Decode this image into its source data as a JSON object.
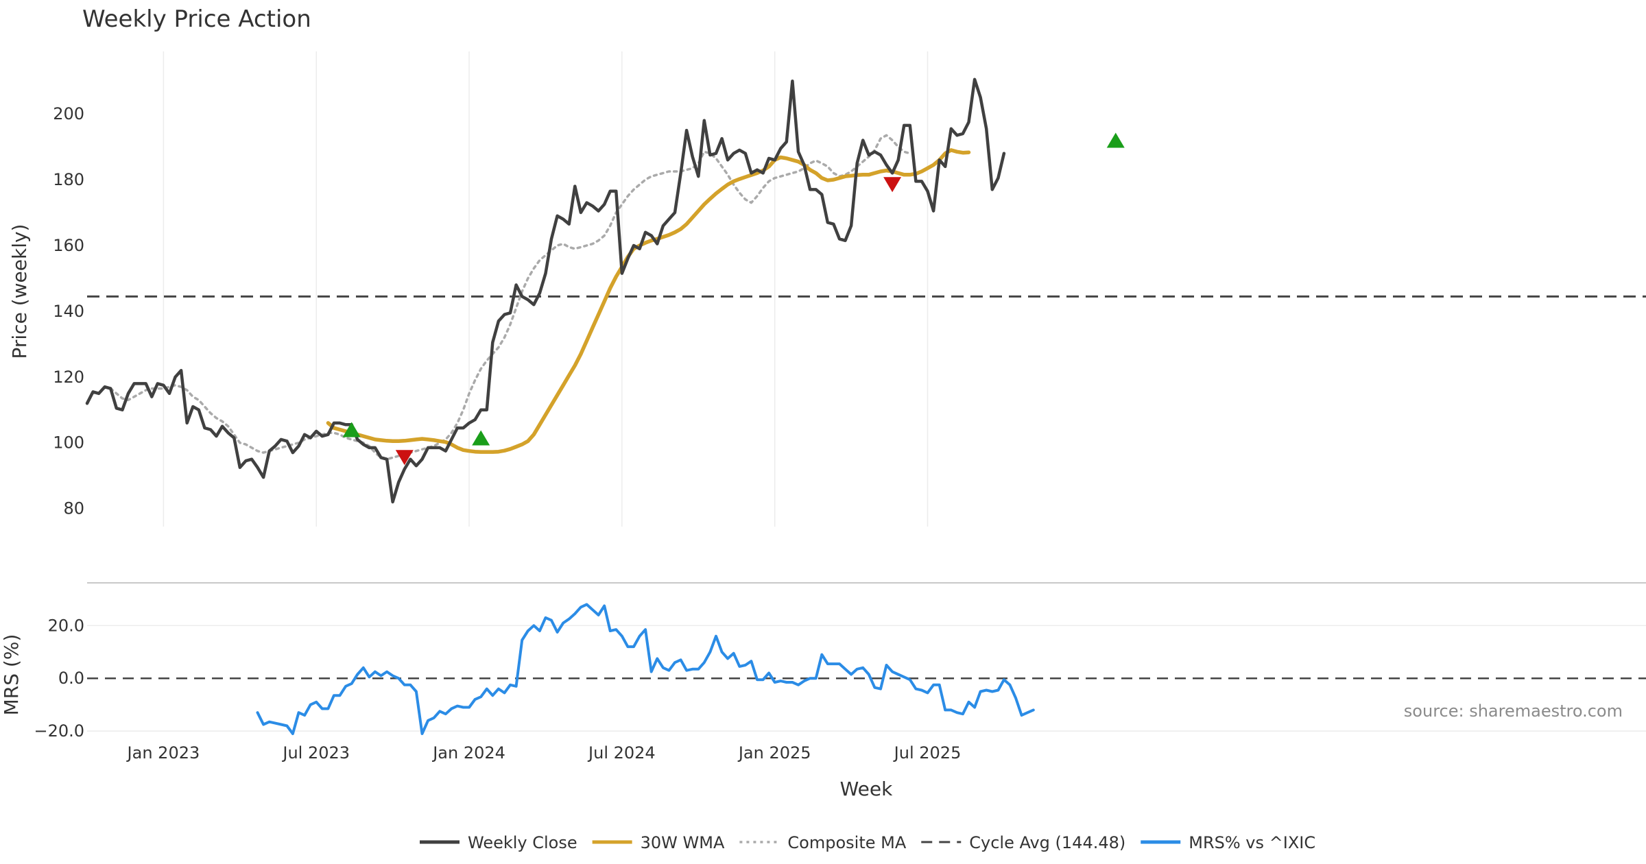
{
  "chart_data": {
    "type": "line",
    "title": "Weekly Price Action",
    "xlabel": "Week",
    "source": "source: sharemaestro.com",
    "x_ticks": [
      "Jan 2023",
      "Jul 2023",
      "Jan 2024",
      "Jul 2024",
      "Jan 2025",
      "Jul 2025"
    ],
    "colors": {
      "close": "#404040",
      "wma": "#d4a22a",
      "composite": "#aaaaaa",
      "cycle": "#444444",
      "mrs": "#2b8ce6",
      "buy": "#1a9e1a",
      "sell": "#cc1111",
      "grid": "#ececec"
    },
    "price_panel": {
      "ylabel": "Price (weekly)",
      "ylim": [
        74.5,
        219
      ],
      "y_ticks": [
        80,
        100,
        120,
        140,
        160,
        180,
        200
      ],
      "cycle_avg": 144.48,
      "series": [
        {
          "name": "Weekly Close",
          "start_week": 0,
          "values": [
            112,
            115.5,
            115,
            117,
            116.5,
            110.5,
            110,
            115,
            118,
            118,
            118,
            114,
            118,
            117.5,
            115,
            120,
            122,
            106,
            111,
            110,
            104.5,
            104,
            102,
            105,
            103,
            101.5,
            92.5,
            94.5,
            95,
            92.5,
            89.5,
            97.5,
            99,
            101,
            100.5,
            97,
            99,
            102.5,
            101.5,
            103.5,
            102,
            102.5,
            106,
            106,
            105.5,
            105.5,
            101,
            99.5,
            98.5,
            98.5,
            95.5,
            95,
            82,
            88,
            92,
            95,
            93,
            95,
            98.5,
            98.5,
            98.5,
            97.5,
            101,
            104.5,
            104.5,
            106,
            107,
            110,
            110,
            130.5,
            137,
            139,
            139.5,
            148,
            144.5,
            143.5,
            142,
            145.5,
            151.5,
            162,
            169,
            168,
            166.5,
            178,
            170,
            173,
            172,
            170.5,
            172.5,
            176.5,
            176.5,
            151.5,
            156,
            160,
            159,
            164,
            163,
            160.5,
            166,
            168,
            170,
            182,
            195,
            187,
            181,
            198,
            187.5,
            188,
            192.5,
            186,
            188,
            189,
            188,
            182,
            183,
            182,
            186.5,
            186,
            189.5,
            191.5,
            210,
            188.5,
            184.5,
            177,
            177,
            175.5,
            167,
            166.5,
            162,
            161.5,
            166,
            185,
            192,
            187.5,
            188.5,
            187.5,
            184.5,
            182,
            186,
            196.5,
            196.5,
            179.5,
            179.5,
            176.5,
            170.5,
            186,
            184,
            195.5,
            193.5,
            194,
            197.5,
            210.5,
            205,
            195.5,
            177,
            180.5,
            188
          ]
        },
        {
          "name": "30W WMA",
          "start_week": 41,
          "values": [
            106,
            104.5,
            104,
            103.5,
            103,
            102.5,
            102,
            101.5,
            101,
            100.8,
            100.6,
            100.5,
            100.5,
            100.6,
            100.8,
            101,
            101.2,
            101,
            100.8,
            100.5,
            100.2,
            99.5,
            98.5,
            97.8,
            97.5,
            97.3,
            97.2,
            97.2,
            97.2,
            97.3,
            97.6,
            98.1,
            98.8,
            99.5,
            100.5,
            102.5,
            105.5,
            108.5,
            111.5,
            114.5,
            117.5,
            120.5,
            123.5,
            127,
            131,
            135,
            139,
            143,
            147,
            150.5,
            153.5,
            156.5,
            159,
            160,
            160.8,
            161.5,
            162,
            162.6,
            163.2,
            164,
            165,
            166.5,
            168.5,
            170.5,
            172.5,
            174.2,
            175.8,
            177.2,
            178.5,
            179.5,
            180.2,
            180.8,
            181.4,
            182,
            182.8,
            184,
            186,
            186.8,
            186.5,
            186,
            185.5,
            184.5,
            183,
            182,
            180.5,
            179.8,
            180,
            180.5,
            181,
            181.2,
            181.4,
            181.5,
            181.5,
            182,
            182.5,
            182.8,
            182.5,
            182,
            181.5,
            181.5,
            181.8,
            182.5,
            183.5,
            184.5,
            186,
            188,
            189,
            188.5,
            188.2,
            188.3
          ]
        },
        {
          "name": "Composite MA",
          "start_week": 4,
          "values": [
            116.5,
            115,
            113.5,
            113,
            114,
            115,
            116,
            116.5,
            116.5,
            116.5,
            117,
            117.5,
            117,
            116,
            114,
            113,
            111,
            109,
            107.5,
            106.5,
            105,
            102.5,
            100,
            99.5,
            98.5,
            97.5,
            97,
            97.5,
            98,
            98.5,
            99,
            99.5,
            100,
            101,
            101.5,
            102,
            102.5,
            103,
            103,
            102.5,
            101.5,
            101,
            100.5,
            100,
            99,
            97,
            95.5,
            95,
            95.5,
            96,
            96.5,
            97,
            97.5,
            98,
            98.5,
            99,
            100,
            101,
            103,
            106,
            110,
            115,
            119,
            122.5,
            125,
            127,
            129,
            132,
            136,
            141,
            146,
            150,
            153,
            155.5,
            157,
            158.5,
            160,
            160.5,
            159.5,
            159,
            159.5,
            160,
            160.5,
            161.5,
            163,
            166,
            170,
            172.5,
            175,
            177,
            178.5,
            180,
            181,
            181.5,
            182,
            182.5,
            182.5,
            182.5,
            183,
            183.5,
            185,
            188.5,
            188,
            186.5,
            184,
            181.5,
            178.5,
            176,
            174,
            173,
            175,
            177.5,
            179.5,
            180.5,
            181,
            181.5,
            182,
            182.5,
            183.5,
            185,
            185.8,
            185,
            184,
            182,
            181,
            181.5,
            182.5,
            184,
            185.5,
            187,
            189,
            192.5,
            193.5,
            192,
            190,
            188.5,
            188
          ]
        }
      ],
      "signals": [
        {
          "type": "buy",
          "week": 45,
          "value": 104
        },
        {
          "type": "sell",
          "week": 54,
          "value": 95.5
        },
        {
          "type": "buy",
          "week": 67,
          "value": 101.5
        },
        {
          "type": "sell",
          "week": 137,
          "value": 178.5
        },
        {
          "type": "buy",
          "week": 175,
          "value": 192
        }
      ]
    },
    "mrs_panel": {
      "ylabel": "MRS (%)",
      "ylim": [
        -21,
        31
      ],
      "y_ticks": [
        20.0,
        0.0,
        -20.0
      ],
      "y_tick_labels": [
        "20.0",
        "0.0",
        "−20.0"
      ],
      "zero_line": 0.0,
      "series": [
        {
          "name": "MRS% vs ^IXIC",
          "start_week": 29,
          "values": [
            -13,
            -17.5,
            -16.5,
            -17,
            -17.5,
            -18,
            -21,
            -13,
            -14,
            -10,
            -9,
            -11.5,
            -11.5,
            -6.5,
            -6.5,
            -3,
            -2,
            1.5,
            4,
            0.5,
            2.5,
            1,
            2.5,
            1,
            0,
            -2.5,
            -2.5,
            -5,
            -21,
            -16,
            -15,
            -12.5,
            -13.5,
            -11.5,
            -10.5,
            -11,
            -11,
            -8,
            -7,
            -4,
            -6.5,
            -4,
            -5.5,
            -2.5,
            -3,
            14.5,
            18,
            20,
            18,
            23,
            22,
            17.5,
            21,
            22.5,
            24.5,
            27,
            28,
            26,
            24,
            27.5,
            18,
            18.5,
            16,
            12,
            12,
            16,
            18.5,
            2.5,
            7.5,
            4,
            3,
            6,
            7,
            3,
            3.5,
            3.5,
            6,
            10,
            16,
            10,
            7.5,
            9.5,
            4.5,
            5,
            6.5,
            -0.5,
            -0.5,
            2,
            -1.5,
            -1,
            -1.5,
            -1.5,
            -2.5,
            -1,
            0,
            0,
            9,
            5.5,
            5.5,
            5.5,
            3.5,
            1.5,
            3.5,
            4,
            1.5,
            -3.5,
            -4,
            5,
            2.5,
            1.5,
            0.5,
            -0.5,
            -4,
            -4.5,
            -5.5,
            -2.5,
            -2.5,
            -12,
            -12,
            -13,
            -13.5,
            -9,
            -11,
            -5,
            -4.5,
            -5,
            -4.5,
            -0.5,
            -2.5,
            -7.5,
            -14,
            -13,
            -12
          ]
        }
      ]
    },
    "legend": [
      {
        "key": "close",
        "label": "Weekly Close",
        "style": "solid"
      },
      {
        "key": "wma",
        "label": "30W WMA",
        "style": "solid"
      },
      {
        "key": "composite",
        "label": "Composite MA",
        "style": "dotted"
      },
      {
        "key": "cycle",
        "label": "Cycle Avg (144.48)",
        "style": "dashed"
      },
      {
        "key": "mrs",
        "label": "MRS% vs ^IXIC",
        "style": "solid"
      }
    ]
  }
}
